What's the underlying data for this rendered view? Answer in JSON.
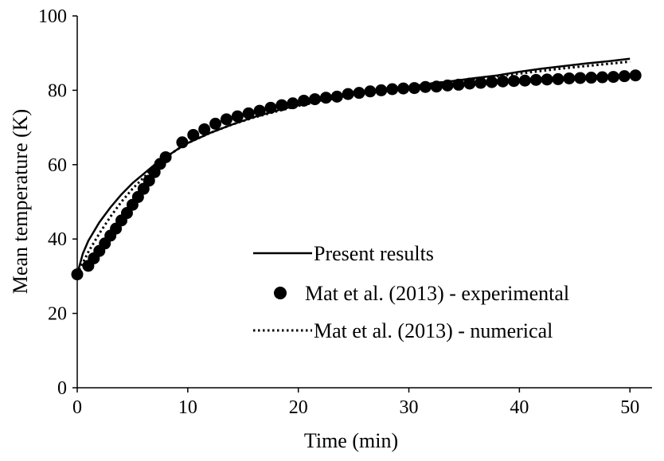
{
  "chart_data": {
    "type": "line",
    "xlabel": "Time (min)",
    "ylabel": "Mean temperature (K)",
    "xlim": [
      0,
      52
    ],
    "ylim": [
      0,
      100
    ],
    "x_ticks": [
      "0",
      "10",
      "20",
      "30",
      "40",
      "50"
    ],
    "y_ticks": [
      "0",
      "20",
      "40",
      "60",
      "80",
      "100"
    ],
    "grid": false,
    "legend_position": "center-bottom",
    "series": [
      {
        "name": "Present results",
        "style": "solid line",
        "color": "#000000",
        "x": [
          0,
          0.5,
          1,
          2,
          3,
          4,
          5,
          6,
          7,
          8,
          9,
          10,
          12,
          14,
          16,
          18,
          20,
          22,
          24,
          26,
          28,
          30,
          32,
          34,
          36,
          38,
          40,
          42,
          44,
          46,
          48,
          50
        ],
        "y": [
          30.5,
          36,
          39.5,
          44.5,
          48.5,
          52,
          55,
          57.5,
          60,
          62,
          64,
          65.8,
          68.5,
          70.8,
          72.8,
          74.5,
          76,
          77.2,
          78.3,
          79.3,
          80.2,
          81,
          81.8,
          82.5,
          83.3,
          84,
          85,
          85.8,
          86.5,
          87.2,
          87.8,
          88.5
        ]
      },
      {
        "name": "Mat et al. (2013) - experimental",
        "style": "markers",
        "color": "#000000",
        "x": [
          0,
          1,
          1.5,
          2,
          2.5,
          3,
          3.5,
          4,
          4.5,
          5,
          5.5,
          6,
          6.5,
          7,
          7.5,
          8,
          9.5,
          10.5,
          11.5,
          12.5,
          13.5,
          14.5,
          15.5,
          16.5,
          17.5,
          18.5,
          19.5,
          20.5,
          21.5,
          22.5,
          23.5,
          24.5,
          25.5,
          26.5,
          27.5,
          28.5,
          29.5,
          30.5,
          31.5,
          32.5,
          33.5,
          34.5,
          35.5,
          36.5,
          37.5,
          38.5,
          39.5,
          40.5,
          41.5,
          42.5,
          43.5,
          44.5,
          45.5,
          46.5,
          47.5,
          48.5,
          49.5,
          50.5
        ],
        "y": [
          30.5,
          32.8,
          34.8,
          36.8,
          38.8,
          40.9,
          42.8,
          45,
          47,
          49.2,
          51.3,
          53.5,
          55.7,
          58,
          60.2,
          62,
          66,
          68,
          69.5,
          71,
          72.2,
          73,
          73.8,
          74.5,
          75.3,
          76,
          76.5,
          77.2,
          77.6,
          78,
          78.3,
          79,
          79.3,
          79.7,
          80,
          80.3,
          80.5,
          80.6,
          80.9,
          81,
          81.3,
          81.5,
          81.8,
          82,
          82.2,
          82.4,
          82.5,
          82.6,
          82.8,
          82.9,
          83,
          83.2,
          83.3,
          83.4,
          83.5,
          83.6,
          83.8,
          84
        ]
      },
      {
        "name": "Mat et al. (2013) - numerical",
        "style": "dotted line",
        "color": "#000000",
        "x": [
          0,
          0.5,
          1,
          2,
          3,
          4,
          5,
          6,
          7,
          8,
          9,
          10,
          12,
          14,
          16,
          18,
          20,
          22,
          24,
          26,
          28,
          30,
          32,
          34,
          36,
          38,
          40,
          42,
          44,
          46,
          48,
          50
        ],
        "y": [
          30.5,
          33.5,
          36.5,
          41.5,
          46,
          50,
          53.5,
          56.5,
          59.5,
          62,
          64,
          65.8,
          68.5,
          70.8,
          72.7,
          74.3,
          75.8,
          77,
          78.2,
          79.3,
          80.2,
          81,
          81.8,
          82.5,
          83.1,
          83.8,
          84.5,
          85.2,
          85.9,
          86.5,
          87.1,
          87.7
        ]
      }
    ]
  }
}
